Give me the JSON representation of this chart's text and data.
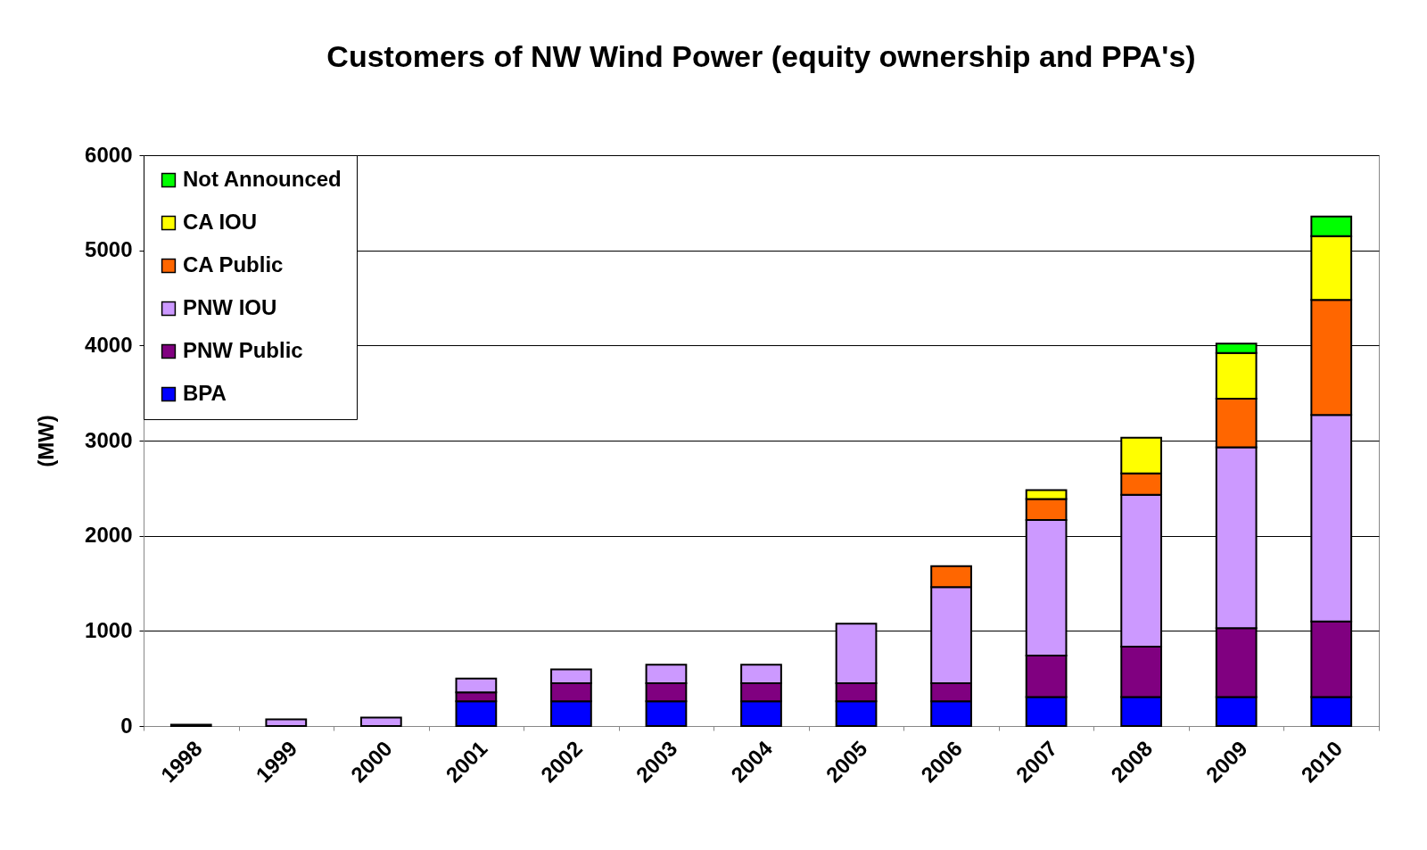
{
  "chart_data": {
    "type": "bar",
    "title": "Customers of NW Wind Power (equity ownership and PPA's)",
    "ylabel": "(MW)",
    "stacked": true,
    "categories": [
      "1998",
      "1999",
      "2000",
      "2001",
      "2002",
      "2003",
      "2004",
      "2005",
      "2006",
      "2007",
      "2008",
      "2009",
      "2010"
    ],
    "series": [
      {
        "name": "BPA",
        "color": "#0000ff",
        "values": [
          null,
          null,
          null,
          260,
          260,
          260,
          260,
          260,
          260,
          305,
          305,
          305,
          305
        ]
      },
      {
        "name": "PNW Public",
        "color": "#800080",
        "values": [
          15,
          null,
          null,
          95,
          190,
          190,
          190,
          190,
          190,
          435,
          530,
          725,
          795
        ]
      },
      {
        "name": "PNW IOU",
        "color": "#cc99ff",
        "values": [
          null,
          70,
          90,
          145,
          145,
          195,
          195,
          625,
          1010,
          1425,
          1595,
          1900,
          2170
        ]
      },
      {
        "name": "CA Public",
        "color": "#ff6600",
        "values": [
          null,
          null,
          null,
          null,
          null,
          null,
          null,
          null,
          220,
          220,
          225,
          510,
          1210
        ]
      },
      {
        "name": "CA IOU",
        "color": "#ffff00",
        "values": [
          null,
          null,
          null,
          null,
          null,
          null,
          null,
          null,
          null,
          95,
          375,
          480,
          670
        ]
      },
      {
        "name": "Not Announced",
        "color": "#00ff00",
        "values": [
          null,
          null,
          null,
          null,
          null,
          null,
          null,
          null,
          null,
          null,
          null,
          100,
          205
        ]
      }
    ],
    "ylim": [
      0,
      6000
    ],
    "yticks": [
      0,
      1000,
      2000,
      3000,
      4000,
      5000,
      6000
    ],
    "grid": "y",
    "legend": "top left"
  }
}
